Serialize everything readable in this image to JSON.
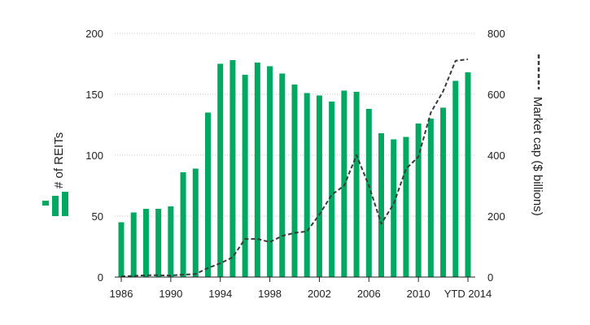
{
  "chart_data": {
    "type": "bar",
    "colors": {
      "bars": "#00a862",
      "line": "#3a3a3a",
      "grid": "#c8c8c8",
      "text": "#222222"
    },
    "x": [
      1986,
      1987,
      1988,
      1989,
      1990,
      1991,
      1992,
      1993,
      1994,
      1995,
      1996,
      1997,
      1998,
      1999,
      2000,
      2001,
      2002,
      2003,
      2004,
      2005,
      2006,
      2007,
      2008,
      2009,
      2010,
      2011,
      2012,
      2013,
      2014
    ],
    "x_tick_labels": [
      {
        "x": 1986,
        "label": "1986"
      },
      {
        "x": 1990,
        "label": "1990"
      },
      {
        "x": 1994,
        "label": "1994"
      },
      {
        "x": 1998,
        "label": "1998"
      },
      {
        "x": 2002,
        "label": "2002"
      },
      {
        "x": 2006,
        "label": "2006"
      },
      {
        "x": 2010,
        "label": "2010"
      },
      {
        "x": 2014,
        "label": "YTD 2014"
      }
    ],
    "series": [
      {
        "name": "# of REITs",
        "kind": "bar",
        "axis": "left",
        "values": [
          45,
          53,
          56,
          56,
          58,
          86,
          89,
          135,
          175,
          178,
          166,
          176,
          173,
          167,
          158,
          151,
          149,
          144,
          153,
          152,
          138,
          118,
          113,
          115,
          126,
          130,
          139,
          161,
          168
        ]
      },
      {
        "name": "Market cap ($ billions)",
        "kind": "line",
        "style": "dashed",
        "axis": "right",
        "values": [
          2,
          4,
          6,
          6,
          5,
          8,
          10,
          30,
          45,
          65,
          125,
          125,
          115,
          135,
          145,
          150,
          205,
          270,
          300,
          400,
          300,
          175,
          240,
          355,
          395,
          540,
          610,
          710,
          715
        ]
      }
    ],
    "y_left": {
      "label": "# of REITs",
      "range": [
        0,
        200
      ],
      "ticks": [
        0,
        50,
        100,
        150,
        200
      ]
    },
    "y_right": {
      "label": "Market cap ($ billions)",
      "range": [
        0,
        800
      ],
      "ticks": [
        0,
        200,
        400,
        600,
        800
      ]
    },
    "grid": "horizontal dotted"
  }
}
